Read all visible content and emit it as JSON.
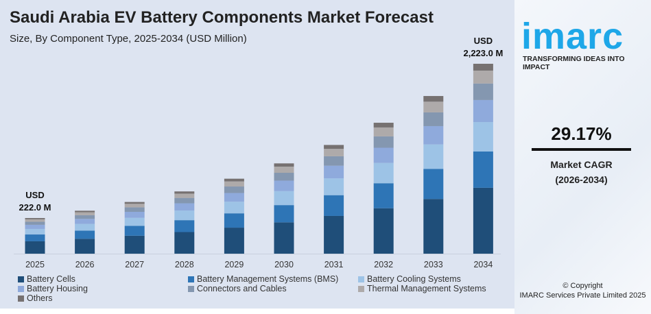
{
  "title": "Saudi Arabia EV Battery Components Market Forecast",
  "subtitle": "Size, By Component Type, 2025-2034 (USD Million)",
  "brand": {
    "logo": "imarc",
    "tagline": "TRANSFORMING IDEAS INTO IMPACT",
    "cagr": "29.17%",
    "cagr_label": "Market CAGR",
    "cagr_period": "(2026-2034)",
    "copyright": "© Copyright",
    "copyright2": "IMARC Services Private Limited 2025",
    "accent": "#1ea7e8"
  },
  "chart_data": {
    "type": "bar",
    "stacked": true,
    "categories": [
      "2025",
      "2026",
      "2027",
      "2028",
      "2029",
      "2030",
      "2031",
      "2032",
      "2033",
      "2034"
    ],
    "totals": [
      222.0,
      286.8,
      370.4,
      478.4,
      617.9,
      798.2,
      1031.0,
      1331.8,
      1720.3,
      2223.0
    ],
    "annotations": [
      {
        "category": "2025",
        "line1": "USD",
        "line2": "222.0 M"
      },
      {
        "category": "2034",
        "line1": "USD",
        "line2": "2,223.0 M"
      }
    ],
    "series": [
      {
        "name": "Battery Cells",
        "share": 0.347,
        "color": "#1f4e79"
      },
      {
        "name": "Battery Management Systems (BMS)",
        "share": 0.191,
        "color": "#2e75b6"
      },
      {
        "name": "Battery Cooling Systems",
        "share": 0.155,
        "color": "#9dc3e6"
      },
      {
        "name": "Battery Housing",
        "share": 0.116,
        "color": "#8faadc"
      },
      {
        "name": "Connectors and Cables",
        "share": 0.087,
        "color": "#8497b0"
      },
      {
        "name": "Thermal Management Systems",
        "share": 0.068,
        "color": "#aeaaaa"
      },
      {
        "name": "Others",
        "share": 0.036,
        "color": "#767171"
      }
    ],
    "grid": false,
    "yaxis_visible": false,
    "legend": "bottom"
  }
}
